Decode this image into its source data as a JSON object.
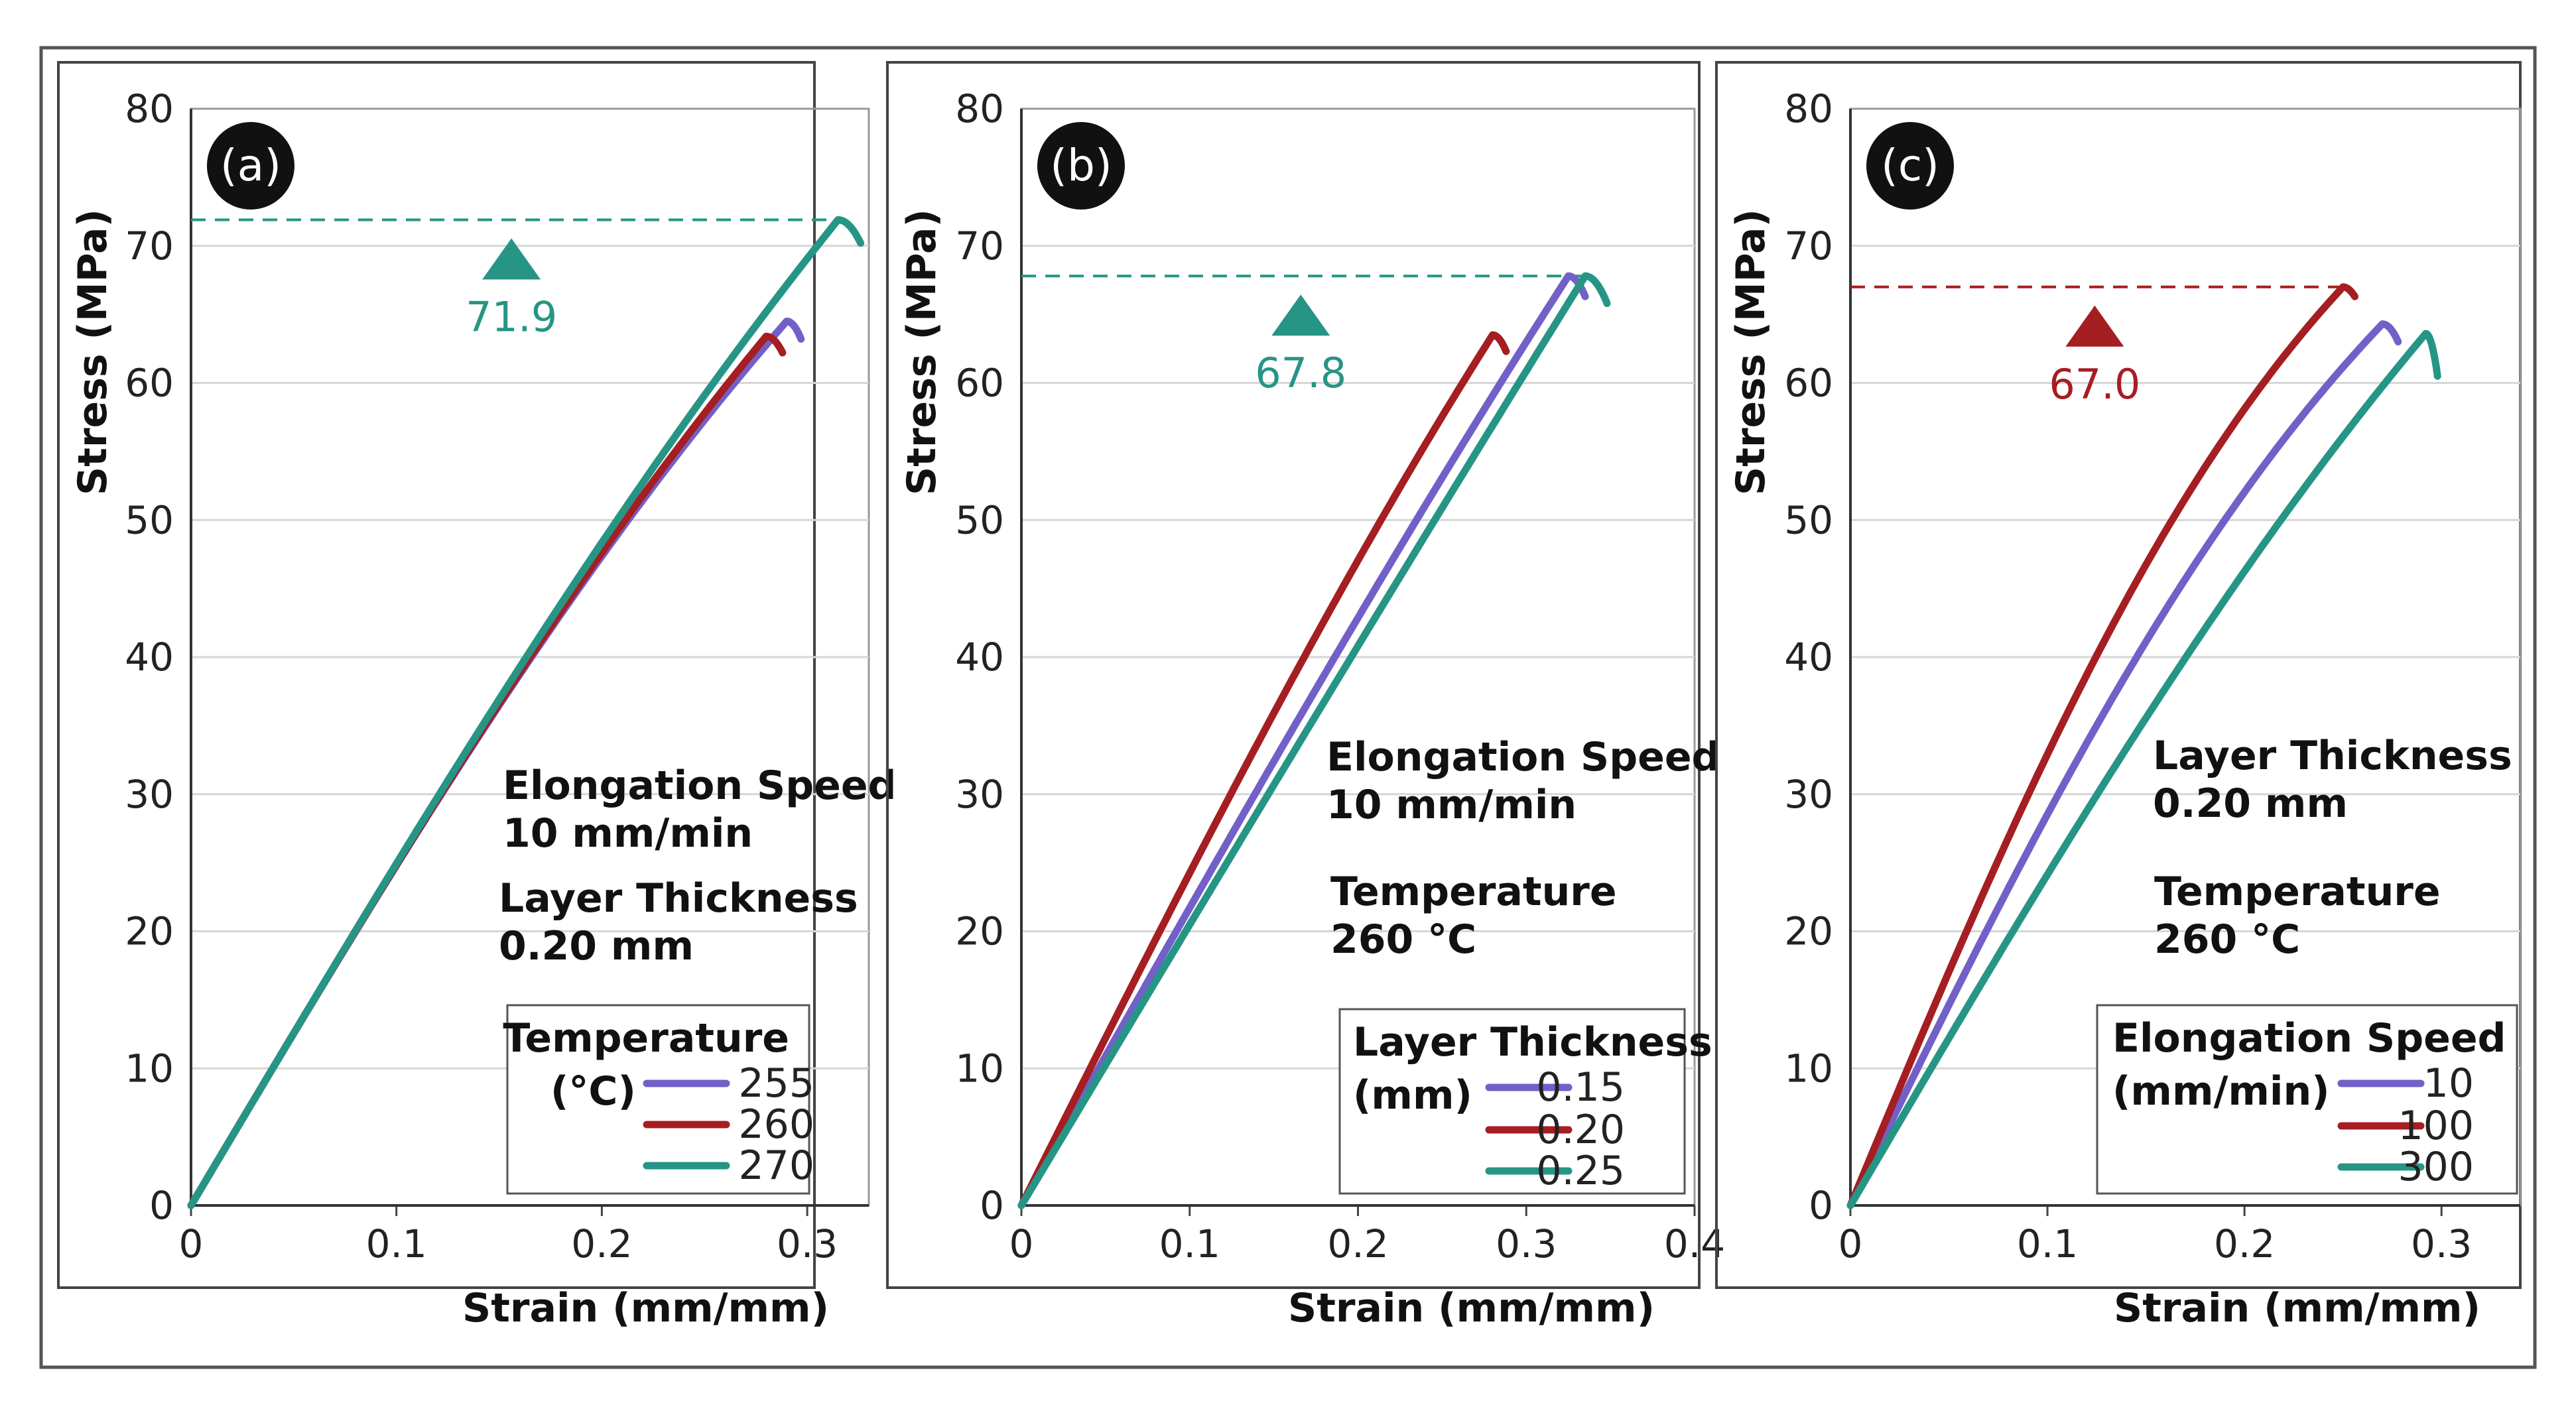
{
  "colors": {
    "purple": "#7260c8",
    "red": "#a51e22",
    "teal": "#269585"
  },
  "chart_data": [
    {
      "type": "line",
      "panel_label": "(a)",
      "xlabel": "Strain (mm/mm)",
      "ylabel": "Stress (MPa)",
      "xlim": [
        0,
        0.33
      ],
      "ylim": [
        0,
        80
      ],
      "xticks": [
        0,
        0.1,
        0.2,
        0.3
      ],
      "xtick_labels": [
        "0",
        "0.1",
        "0.2",
        "0.3"
      ],
      "yticks": [
        0,
        10,
        20,
        30,
        40,
        50,
        60,
        70,
        80
      ],
      "ytick_labels": [
        "0",
        "10",
        "20",
        "30",
        "40",
        "50",
        "60",
        "70",
        "80"
      ],
      "grid": true,
      "peak": {
        "value": 71.9,
        "label": "71.9",
        "color": "#269585",
        "marker_x": 0.156,
        "line_end_x": 0.31
      },
      "notes": [
        {
          "lines": [
            "Elongation Speed",
            "10 mm/min"
          ]
        },
        {
          "lines": [
            "Layer Thickness",
            "0.20 mm"
          ]
        }
      ],
      "legend": {
        "title_lines": [
          "Temperature",
          "(°C)"
        ],
        "placement": "lower-right",
        "entries": [
          "255",
          "260",
          "270"
        ]
      },
      "series": [
        {
          "name": "255",
          "color": "#7260c8",
          "modulus": 252,
          "peak_strain": 0.29,
          "peak_stress": 64.5,
          "end_strain": 0.297,
          "end_stress": 63.2
        },
        {
          "name": "260",
          "color": "#a51e22",
          "modulus": 252,
          "peak_strain": 0.28,
          "peak_stress": 63.4,
          "end_strain": 0.288,
          "end_stress": 62.2
        },
        {
          "name": "270",
          "color": "#269585",
          "modulus": 252,
          "peak_strain": 0.315,
          "peak_stress": 71.9,
          "end_strain": 0.326,
          "end_stress": 70.2
        }
      ]
    },
    {
      "type": "line",
      "panel_label": "(b)",
      "xlabel": "Strain (mm/mm)",
      "ylabel": "Stress (MPa)",
      "xlim": [
        0,
        0.4
      ],
      "ylim": [
        0,
        80
      ],
      "xticks": [
        0,
        0.1,
        0.2,
        0.3,
        0.4
      ],
      "xtick_labels": [
        "0",
        "0.1",
        "0.2",
        "0.3",
        "0.4"
      ],
      "yticks": [
        0,
        10,
        20,
        30,
        40,
        50,
        60,
        70,
        80
      ],
      "ytick_labels": [
        "0",
        "10",
        "20",
        "30",
        "40",
        "50",
        "60",
        "70",
        "80"
      ],
      "grid": true,
      "peak": {
        "value": 67.8,
        "label": "67.8",
        "color": "#269585",
        "marker_x": 0.166,
        "line_end_x": 0.335
      },
      "notes": [
        {
          "lines": [
            "Elongation Speed",
            "10 mm/min"
          ]
        },
        {
          "lines": [
            "Temperature",
            "260 °C"
          ]
        }
      ],
      "legend": {
        "title_lines": [
          "Layer Thickness",
          "(mm)"
        ],
        "placement": "lower-right",
        "entries": [
          "0.15",
          "0.20",
          "0.25"
        ]
      },
      "series": [
        {
          "name": "0.15",
          "color": "#7260c8",
          "modulus": 218,
          "peak_strain": 0.325,
          "peak_stress": 67.8,
          "end_strain": 0.335,
          "end_stress": 66.3
        },
        {
          "name": "0.20",
          "color": "#a51e22",
          "modulus": 245,
          "peak_strain": 0.28,
          "peak_stress": 63.5,
          "end_strain": 0.288,
          "end_stress": 62.3
        },
        {
          "name": "0.25",
          "color": "#269585",
          "modulus": 205,
          "peak_strain": 0.335,
          "peak_stress": 67.8,
          "end_strain": 0.348,
          "end_stress": 65.8
        }
      ]
    },
    {
      "type": "line",
      "panel_label": "(c)",
      "xlabel": "Strain (mm/mm)",
      "ylabel": "Stress (MPa)",
      "xlim": [
        0,
        0.34
      ],
      "ylim": [
        0,
        80
      ],
      "xticks": [
        0,
        0.1,
        0.2,
        0.3
      ],
      "xtick_labels": [
        "0",
        "0.1",
        "0.2",
        "0.3"
      ],
      "yticks": [
        0,
        10,
        20,
        30,
        40,
        50,
        60,
        70,
        80
      ],
      "ytick_labels": [
        "0",
        "10",
        "20",
        "30",
        "40",
        "50",
        "60",
        "70",
        "80"
      ],
      "grid": true,
      "peak": {
        "value": 67.0,
        "label": "67.0",
        "color": "#a51e22",
        "marker_x": 0.124,
        "line_end_x": 0.248
      },
      "notes": [
        {
          "lines": [
            "Layer Thickness",
            "0.20 mm"
          ]
        },
        {
          "lines": [
            "Temperature",
            "260 °C"
          ]
        }
      ],
      "legend": {
        "title_lines": [
          "Elongation Speed",
          "(mm/min)"
        ],
        "placement": "lower-right",
        "entries": [
          "10",
          "100",
          "300"
        ]
      },
      "series": [
        {
          "name": "10",
          "color": "#7260c8",
          "modulus": 295,
          "peak_strain": 0.27,
          "peak_stress": 64.3,
          "end_strain": 0.278,
          "end_stress": 63.0
        },
        {
          "name": "100",
          "color": "#a51e22",
          "modulus": 345,
          "peak_strain": 0.25,
          "peak_stress": 67.0,
          "end_strain": 0.256,
          "end_stress": 66.3
        },
        {
          "name": "300",
          "color": "#269585",
          "modulus": 245,
          "peak_strain": 0.292,
          "peak_stress": 63.6,
          "end_strain": 0.298,
          "end_stress": 60.5
        }
      ]
    }
  ]
}
